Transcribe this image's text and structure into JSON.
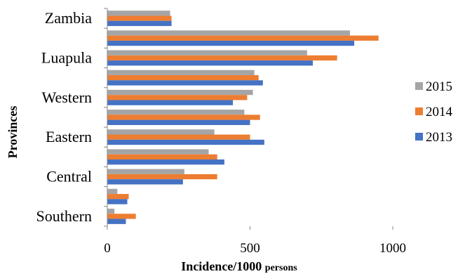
{
  "chart_data": {
    "type": "bar",
    "orientation": "horizontal",
    "xlabel_main": "Incidence/1000",
    "xlabel_suffix": "persons",
    "ylabel": "Provinces",
    "xlim": [
      0,
      1000
    ],
    "xticks": [
      0,
      500,
      1000
    ],
    "grid": false,
    "legend_position": "right",
    "category_order": "bottom-to-top",
    "categories": [
      "Southern",
      "",
      "Central",
      "",
      "Eastern",
      "",
      "Western",
      "",
      "Luapula",
      "",
      "Zambia"
    ],
    "series": [
      {
        "name": "2015",
        "color": "#a5a5a5",
        "values": [
          25,
          35,
          270,
          355,
          375,
          480,
          510,
          515,
          700,
          850,
          220
        ]
      },
      {
        "name": "2014",
        "color": "#ed7d31",
        "values": [
          100,
          75,
          385,
          385,
          500,
          535,
          490,
          530,
          805,
          950,
          225
        ]
      },
      {
        "name": "2013",
        "color": "#4472c4",
        "values": [
          65,
          70,
          265,
          410,
          550,
          500,
          440,
          545,
          720,
          865,
          225
        ]
      }
    ]
  }
}
